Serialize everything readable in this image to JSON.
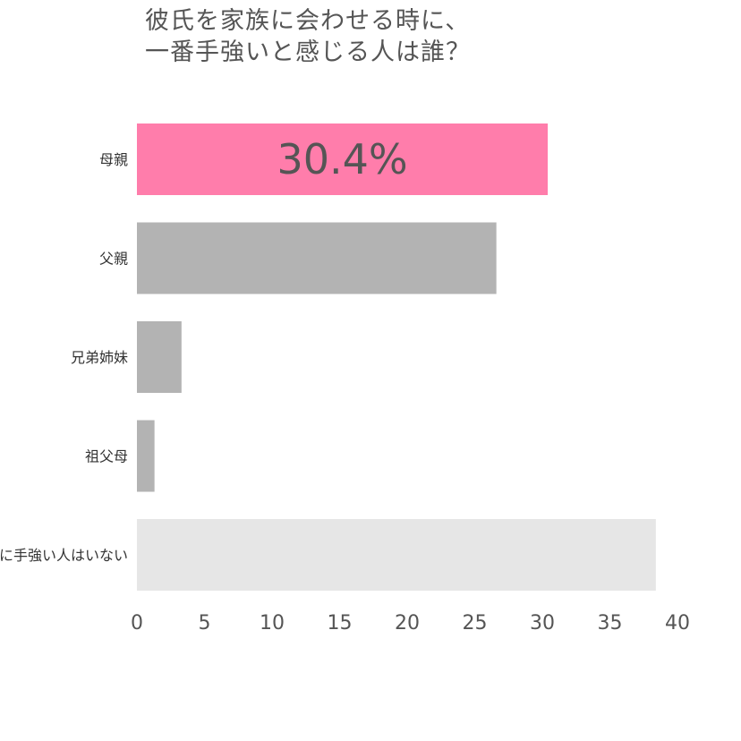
{
  "chart_data": {
    "type": "bar",
    "orientation": "horizontal",
    "title": "彼氏を家族に会わせる時に、\n一番手強いと感じる人は誰？",
    "xlabel": "",
    "ylabel": "",
    "categories": [
      "母親",
      "父親",
      "兄弟姉妹",
      "祖父母",
      "特に手強い人はいない"
    ],
    "values": [
      30.4,
      26.6,
      3.3,
      1.3,
      38.4
    ],
    "xlim": [
      0,
      40
    ],
    "xticks": [
      "0",
      "5",
      "10",
      "15",
      "20",
      "25",
      "30",
      "35",
      "40"
    ],
    "data_labels": [
      "30.4%",
      "",
      "",
      "",
      ""
    ],
    "bar_colors": [
      "#ff7dab",
      "#b3b3b3",
      "#b3b3b3",
      "#b3b3b3",
      "#e6e6e6"
    ],
    "grid": false,
    "legend": "none"
  }
}
